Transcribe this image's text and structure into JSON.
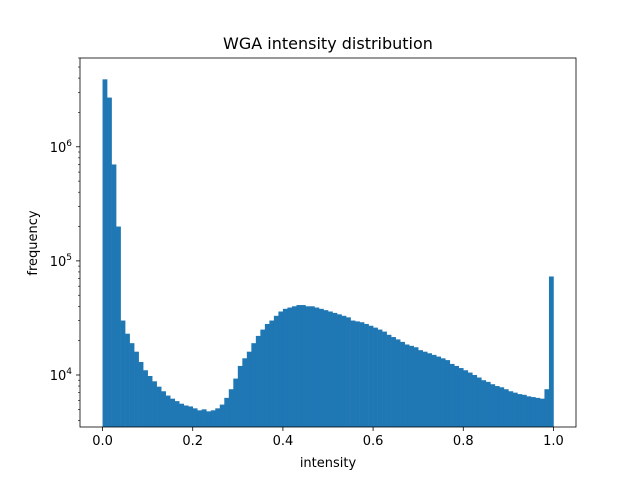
{
  "chart_data": {
    "type": "bar",
    "title": "WGA intensity distribution",
    "xlabel": "intensity",
    "ylabel": "frequency",
    "y_scale": "log",
    "xlim": [
      -0.05,
      1.05
    ],
    "ylim": [
      3500,
      6000000
    ],
    "grid": false,
    "bar_color": "#1f77b4",
    "x_ticks": [
      0.0,
      0.2,
      0.4,
      0.6,
      0.8,
      1.0
    ],
    "x_tick_labels": [
      "0.0",
      "0.2",
      "0.4",
      "0.6",
      "0.8",
      "1.0"
    ],
    "y_ticks": [
      10000,
      100000,
      1000000
    ],
    "y_tick_labels": [
      {
        "base": "10",
        "exp": "4"
      },
      {
        "base": "10",
        "exp": "5"
      },
      {
        "base": "10",
        "exp": "6"
      }
    ],
    "bin_width": 0.01,
    "bin_starts": [
      0.0,
      0.01,
      0.02,
      0.03,
      0.04,
      0.05,
      0.06,
      0.07,
      0.08,
      0.09,
      0.1,
      0.11,
      0.12,
      0.13,
      0.14,
      0.15,
      0.16,
      0.17,
      0.18,
      0.19,
      0.2,
      0.21,
      0.22,
      0.23,
      0.24,
      0.25,
      0.26,
      0.27,
      0.28,
      0.29,
      0.3,
      0.31,
      0.32,
      0.33,
      0.34,
      0.35,
      0.36,
      0.37,
      0.38,
      0.39,
      0.4,
      0.41,
      0.42,
      0.43,
      0.44,
      0.45,
      0.46,
      0.47,
      0.48,
      0.49,
      0.5,
      0.51,
      0.52,
      0.53,
      0.54,
      0.55,
      0.56,
      0.57,
      0.58,
      0.59,
      0.6,
      0.61,
      0.62,
      0.63,
      0.64,
      0.65,
      0.66,
      0.67,
      0.68,
      0.69,
      0.7,
      0.71,
      0.72,
      0.73,
      0.74,
      0.75,
      0.76,
      0.77,
      0.78,
      0.79,
      0.8,
      0.81,
      0.82,
      0.83,
      0.84,
      0.85,
      0.86,
      0.87,
      0.88,
      0.89,
      0.9,
      0.91,
      0.92,
      0.93,
      0.94,
      0.95,
      0.96,
      0.97,
      0.98,
      0.99
    ],
    "values": [
      3900000,
      2700000,
      700000,
      200000,
      30000,
      23000,
      19000,
      16000,
      13000,
      11000,
      9800,
      8800,
      7900,
      7200,
      6600,
      6200,
      5900,
      5600,
      5400,
      5300,
      5100,
      4900,
      5000,
      4800,
      4900,
      5100,
      5500,
      6300,
      7500,
      9300,
      12000,
      14000,
      16000,
      19000,
      22000,
      25000,
      28000,
      30000,
      33000,
      36000,
      38000,
      39000,
      40000,
      41000,
      41000,
      40000,
      40000,
      39000,
      38000,
      37000,
      36000,
      35000,
      34000,
      33000,
      32000,
      30000,
      29500,
      29000,
      28000,
      27000,
      26000,
      25000,
      24000,
      22500,
      21500,
      20500,
      19500,
      18500,
      18000,
      17500,
      16500,
      16000,
      15500,
      15000,
      14500,
      14000,
      13500,
      12500,
      12000,
      11500,
      11000,
      10500,
      10000,
      9500,
      9000,
      8700,
      8300,
      8000,
      7800,
      7500,
      7200,
      7000,
      6800,
      6700,
      6500,
      6400,
      6300,
      6200,
      7500,
      73000
    ]
  }
}
